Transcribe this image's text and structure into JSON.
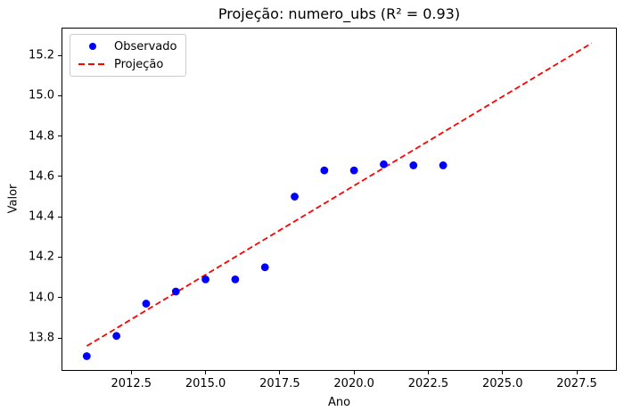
{
  "chart_data": {
    "type": "scatter",
    "title": "Projeção: numero_ubs (R² = 0.93)",
    "xlabel": "Ano",
    "ylabel": "Valor",
    "r_squared": 0.93,
    "xlim": [
      2010.15,
      2028.85
    ],
    "ylim": [
      13.637,
      15.337
    ],
    "xticks": [
      2012.5,
      2015.0,
      2017.5,
      2020.0,
      2022.5,
      2025.0,
      2027.5
    ],
    "yticks": [
      13.8,
      14.0,
      14.2,
      14.4,
      14.6,
      14.8,
      15.0,
      15.2
    ],
    "grid": false,
    "legend_position": "upper left",
    "series": [
      {
        "name": "Observado",
        "kind": "scatter",
        "color": "#0000ff",
        "points": [
          [
            2011,
            13.71
          ],
          [
            2012,
            13.81
          ],
          [
            2013,
            13.97
          ],
          [
            2014,
            14.03
          ],
          [
            2015,
            14.09
          ],
          [
            2016,
            14.09
          ],
          [
            2017,
            14.15
          ],
          [
            2018,
            14.5
          ],
          [
            2019,
            14.63
          ],
          [
            2020,
            14.63
          ],
          [
            2021,
            14.66
          ],
          [
            2022,
            14.655
          ],
          [
            2023,
            14.655
          ]
        ]
      },
      {
        "name": "Projeção",
        "kind": "line",
        "style": "dashed",
        "color": "#ff0000",
        "points": [
          [
            2011,
            13.76
          ],
          [
            2028,
            15.26
          ]
        ]
      }
    ]
  }
}
